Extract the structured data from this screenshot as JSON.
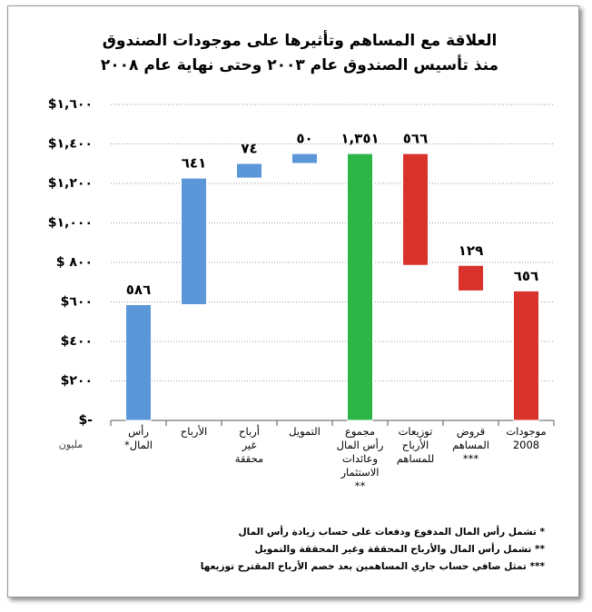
{
  "chart_data": {
    "type": "waterfall",
    "title": [
      "العلاقة مع المساهم وتأثيرها على موجودات الصندوق",
      "منذ تأسيس الصندوق عام ٢٠٠٣ وحتى نهاية عام ٢٠٠٨"
    ],
    "y_unit": "مليون",
    "categories": [
      "رأس\nالمال*",
      "الأرباح",
      "أرباح\nغير\nمحققة",
      "التمويل",
      "مجموع\nرأس المال\nوعائدات\nالاستثمار\n**",
      "توزيعات\nالأرباح\nللمساهم",
      "قروض\nالمساهم\n***",
      "موجودات\n2008"
    ],
    "values": [
      586,
      641,
      74,
      50,
      1351,
      566,
      129,
      656
    ],
    "value_labels": [
      "٥٨٦",
      "٦٤١",
      "٧٤",
      "٥٠",
      "١,٣٥١",
      "٥٦٦",
      "١٢٩",
      "٦٥٦"
    ],
    "measure": [
      "absolute",
      "increase",
      "increase",
      "increase",
      "total",
      "decrease",
      "decrease",
      "total"
    ],
    "colors": [
      "#5b97d8",
      "#5b97d8",
      "#5b97d8",
      "#5b97d8",
      "#2db548",
      "#d8322b",
      "#d8322b",
      "#d8322b"
    ],
    "ylim": [
      0,
      1600
    ],
    "yticks": [
      {
        "value": 0,
        "label": "$-"
      },
      {
        "value": 200,
        "label": "$٢٠٠"
      },
      {
        "value": 400,
        "label": "$٤٠٠"
      },
      {
        "value": 600,
        "label": "$٦٠٠"
      },
      {
        "value": 800,
        "label": "$ ٨٠٠"
      },
      {
        "value": 1000,
        "label": "$١,٠٠٠"
      },
      {
        "value": 1200,
        "label": "$١,٢٠٠"
      },
      {
        "value": 1400,
        "label": "$١,٤٠٠"
      },
      {
        "value": 1600,
        "label": "$١,٦٠٠"
      }
    ],
    "grid": true,
    "footnotes": [
      "* تشمل رأس المال المدفوع ودفعات على حساب زيادة رأس المال",
      "** تشمل رأس المال والأرباح المحققة وغير المحققة والتمويل",
      "*** تمثل صافي حساب جاري المساهمين بعد خصم الأرباح المقترح توزيعها"
    ]
  }
}
